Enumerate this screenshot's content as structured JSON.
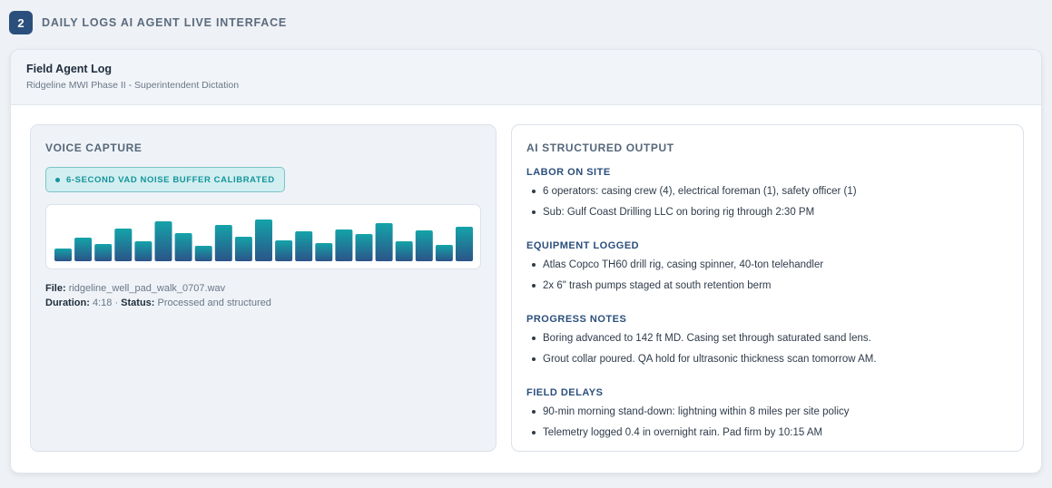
{
  "step": {
    "number": "2",
    "title": "DAILY LOGS AI AGENT LIVE INTERFACE"
  },
  "card": {
    "title": "Field Agent Log",
    "subtitle": "Ridgeline MWI Phase II - Superintendent Dictation"
  },
  "voice": {
    "heading": "VOICE CAPTURE",
    "badge": "6-SECOND VAD NOISE BUFFER CALIBRATED",
    "waveform_levels": [
      0.28,
      0.52,
      0.38,
      0.72,
      0.44,
      0.88,
      0.62,
      0.34,
      0.8,
      0.54,
      0.92,
      0.46,
      0.66,
      0.4,
      0.7,
      0.6,
      0.84,
      0.44,
      0.68,
      0.36,
      0.76
    ],
    "colors": {
      "bar_top": "#14a3a9",
      "bar_bottom": "#2b5488"
    },
    "file_label": "File:",
    "file_value": "ridgeline_well_pad_walk_0707.wav",
    "duration_label": "Duration:",
    "duration_value": "4:18",
    "separator": "·",
    "status_label": "Status:",
    "status_value": "Processed and structured"
  },
  "output": {
    "heading": "AI STRUCTURED OUTPUT",
    "sections": [
      {
        "title": "LABOR ON SITE",
        "items": [
          "6 operators: casing crew (4), electrical foreman (1), safety officer (1)",
          "Sub: Gulf Coast Drilling LLC on boring rig through 2:30 PM"
        ]
      },
      {
        "title": "EQUIPMENT LOGGED",
        "items": [
          "Atlas Copco TH60 drill rig, casing spinner, 40-ton telehandler",
          "2x 6\" trash pumps staged at south retention berm"
        ]
      },
      {
        "title": "PROGRESS NOTES",
        "items": [
          "Boring advanced to 142 ft MD. Casing set through saturated sand lens.",
          "Grout collar poured. QA hold for ultrasonic thickness scan tomorrow AM."
        ]
      },
      {
        "title": "FIELD DELAYS",
        "items": [
          "90-min morning stand-down: lightning within 8 miles per site policy",
          "Telemetry logged 0.4 in overnight rain. Pad firm by 10:15 AM"
        ]
      }
    ]
  }
}
